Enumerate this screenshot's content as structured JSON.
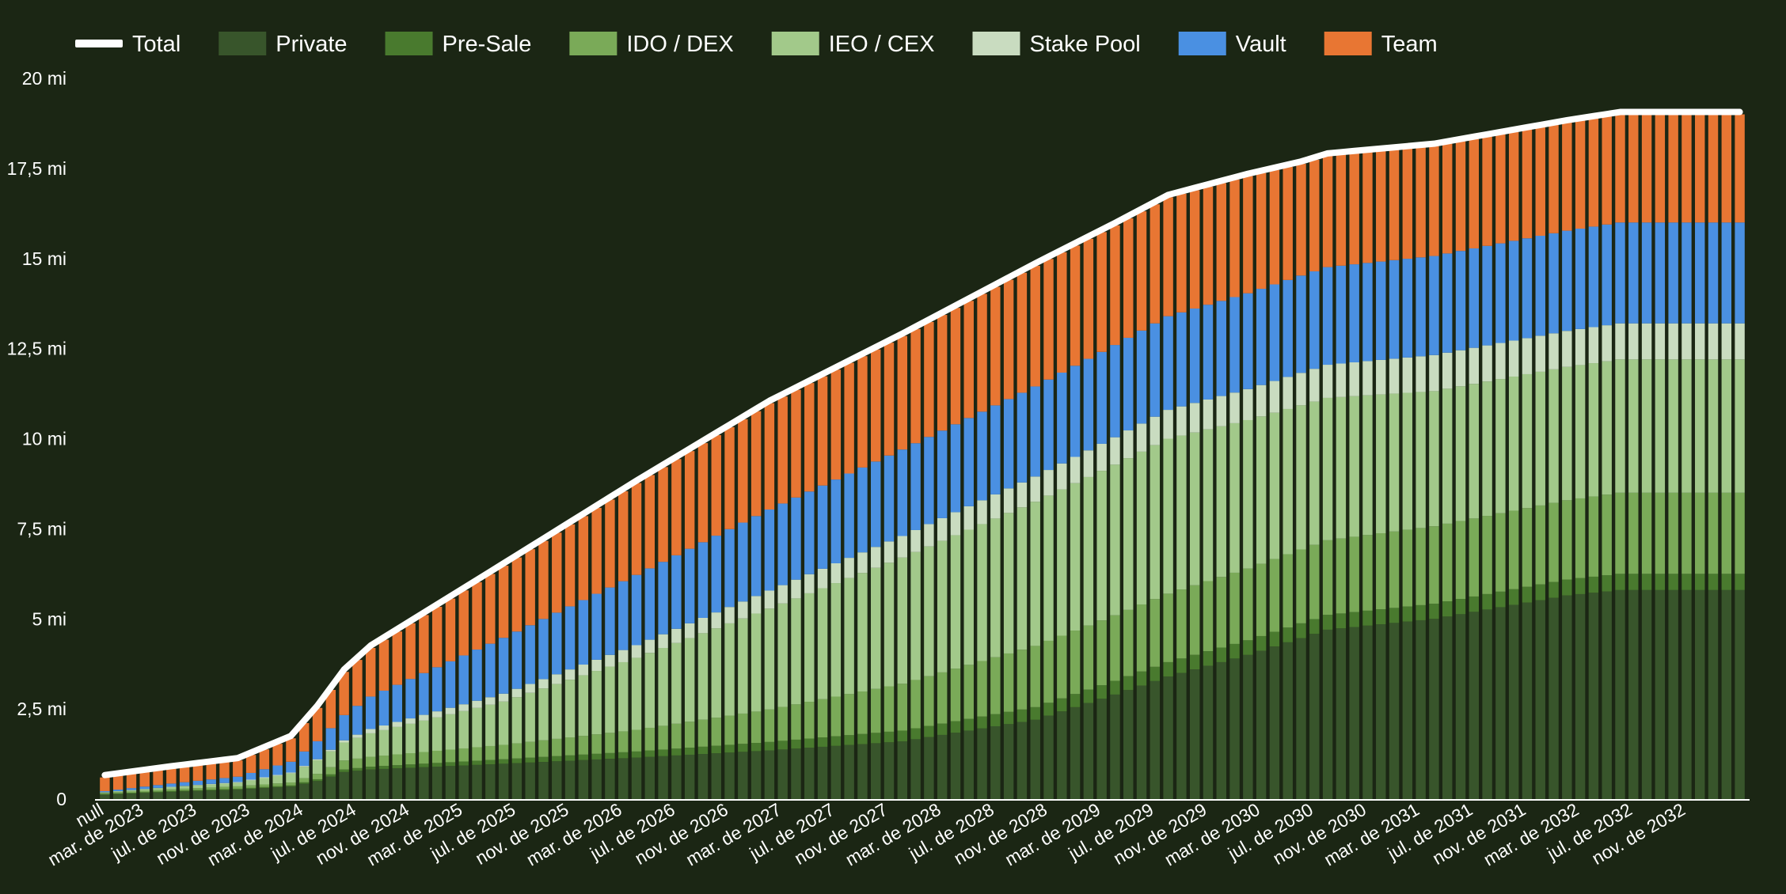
{
  "chart_data": {
    "type": "bar",
    "stacked": true,
    "title": "",
    "xlabel": "",
    "ylabel": "",
    "ylim": [
      0,
      20000000
    ],
    "grid": false,
    "legend_position": "top",
    "background": "#1b2614",
    "y_ticks": [
      {
        "value": 0,
        "label": "0"
      },
      {
        "value": 2500000,
        "label": "2,5 mi"
      },
      {
        "value": 5000000,
        "label": "5 mi"
      },
      {
        "value": 7500000,
        "label": "7,5 mi"
      },
      {
        "value": 10000000,
        "label": "10 mi"
      },
      {
        "value": 12500000,
        "label": "12,5 mi"
      },
      {
        "value": 15000000,
        "label": "15 mi"
      },
      {
        "value": 17500000,
        "label": "17,5 mi"
      },
      {
        "value": 20000000,
        "label": "20 mi"
      }
    ],
    "x_tick_labels": [
      {
        "index": 0,
        "label": "null"
      },
      {
        "index": 3,
        "label": "mar. de 2023"
      },
      {
        "index": 7,
        "label": "jul. de 2023"
      },
      {
        "index": 11,
        "label": "nov. de 2023"
      },
      {
        "index": 15,
        "label": "mar. de 2024"
      },
      {
        "index": 19,
        "label": "jul. de 2024"
      },
      {
        "index": 23,
        "label": "nov. de 2024"
      },
      {
        "index": 27,
        "label": "mar. de 2025"
      },
      {
        "index": 31,
        "label": "jul. de 2025"
      },
      {
        "index": 35,
        "label": "nov. de 2025"
      },
      {
        "index": 39,
        "label": "mar. de 2026"
      },
      {
        "index": 43,
        "label": "jul. de 2026"
      },
      {
        "index": 47,
        "label": "nov. de 2026"
      },
      {
        "index": 51,
        "label": "mar. de 2027"
      },
      {
        "index": 55,
        "label": "jul. de 2027"
      },
      {
        "index": 59,
        "label": "nov. de 2027"
      },
      {
        "index": 63,
        "label": "mar. de 2028"
      },
      {
        "index": 67,
        "label": "jul. de 2028"
      },
      {
        "index": 71,
        "label": "nov. de 2028"
      },
      {
        "index": 75,
        "label": "mar. de 2029"
      },
      {
        "index": 79,
        "label": "jul. de 2029"
      },
      {
        "index": 83,
        "label": "nov. de 2029"
      },
      {
        "index": 87,
        "label": "mar. de 2030"
      },
      {
        "index": 91,
        "label": "jul. de 2030"
      },
      {
        "index": 95,
        "label": "nov. de 2030"
      },
      {
        "index": 99,
        "label": "mar. de 2031"
      },
      {
        "index": 103,
        "label": "jul. de 2031"
      },
      {
        "index": 107,
        "label": "nov. de 2031"
      },
      {
        "index": 111,
        "label": "mar. de 2032"
      },
      {
        "index": 115,
        "label": "jul. de 2032"
      },
      {
        "index": 119,
        "label": "nov. de 2032"
      }
    ],
    "total_series": {
      "name": "Total",
      "color": "#ffffff"
    },
    "series": [
      {
        "name": "Private",
        "color": "#38552b",
        "points": [
          [
            0,
            0.12
          ],
          [
            5,
            0.2
          ],
          [
            10,
            0.26
          ],
          [
            14,
            0.35
          ],
          [
            16,
            0.5
          ],
          [
            18,
            0.75
          ],
          [
            20,
            0.82
          ],
          [
            30,
            0.98
          ],
          [
            40,
            1.15
          ],
          [
            50,
            1.35
          ],
          [
            60,
            1.6
          ],
          [
            70,
            2.2
          ],
          [
            76,
            2.9
          ],
          [
            80,
            3.4
          ],
          [
            86,
            4.0
          ],
          [
            92,
            4.7
          ],
          [
            100,
            5.0
          ],
          [
            110,
            5.65
          ],
          [
            114,
            5.8
          ],
          [
            123,
            5.8
          ]
        ]
      },
      {
        "name": "Pre-Sale",
        "color": "#497a2e",
        "points": [
          [
            0,
            0.02
          ],
          [
            14,
            0.03
          ],
          [
            16,
            0.05
          ],
          [
            18,
            0.07
          ],
          [
            40,
            0.17
          ],
          [
            60,
            0.3
          ],
          [
            80,
            0.4
          ],
          [
            100,
            0.42
          ],
          [
            114,
            0.45
          ],
          [
            123,
            0.45
          ]
        ]
      },
      {
        "name": "IDO / DEX",
        "color": "#7aaa58",
        "points": [
          [
            0,
            0.03
          ],
          [
            14,
            0.08
          ],
          [
            16,
            0.15
          ],
          [
            18,
            0.25
          ],
          [
            30,
            0.4
          ],
          [
            40,
            0.6
          ],
          [
            50,
            0.9
          ],
          [
            60,
            1.3
          ],
          [
            70,
            1.7
          ],
          [
            80,
            1.9
          ],
          [
            90,
            2.05
          ],
          [
            100,
            2.15
          ],
          [
            110,
            2.2
          ],
          [
            114,
            2.25
          ],
          [
            123,
            2.25
          ]
        ]
      },
      {
        "name": "IEO / CEX",
        "color": "#a2c98a",
        "points": [
          [
            0,
            0.02
          ],
          [
            10,
            0.1
          ],
          [
            14,
            0.25
          ],
          [
            18,
            0.5
          ],
          [
            20,
            0.65
          ],
          [
            30,
            1.2
          ],
          [
            40,
            2.0
          ],
          [
            50,
            2.8
          ],
          [
            60,
            3.5
          ],
          [
            70,
            4.0
          ],
          [
            80,
            4.3
          ],
          [
            90,
            4.0
          ],
          [
            100,
            3.75
          ],
          [
            110,
            3.7
          ],
          [
            114,
            3.7
          ],
          [
            123,
            3.7
          ]
        ]
      },
      {
        "name": "Stake Pool",
        "color": "#c9dcc0",
        "points": [
          [
            0,
            0.0
          ],
          [
            16,
            0.03
          ],
          [
            18,
            0.06
          ],
          [
            20,
            0.12
          ],
          [
            30,
            0.22
          ],
          [
            40,
            0.35
          ],
          [
            50,
            0.5
          ],
          [
            60,
            0.6
          ],
          [
            70,
            0.7
          ],
          [
            80,
            0.8
          ],
          [
            90,
            0.9
          ],
          [
            100,
            1.0
          ],
          [
            110,
            1.0
          ],
          [
            114,
            1.0
          ],
          [
            123,
            1.0
          ]
        ]
      },
      {
        "name": "Vault",
        "color": "#4a90e2",
        "points": [
          [
            0,
            0.03
          ],
          [
            10,
            0.15
          ],
          [
            14,
            0.3
          ],
          [
            20,
            0.9
          ],
          [
            30,
            1.55
          ],
          [
            40,
            1.95
          ],
          [
            50,
            2.25
          ],
          [
            60,
            2.4
          ],
          [
            70,
            2.5
          ],
          [
            80,
            2.6
          ],
          [
            90,
            2.7
          ],
          [
            100,
            2.75
          ],
          [
            110,
            2.78
          ],
          [
            114,
            2.8
          ],
          [
            123,
            2.8
          ]
        ]
      },
      {
        "name": "Team",
        "color": "#e87633",
        "points": [
          [
            0,
            0.38
          ],
          [
            10,
            0.45
          ],
          [
            14,
            0.65
          ],
          [
            18,
            1.2
          ],
          [
            20,
            1.35
          ],
          [
            30,
            2.0
          ],
          [
            40,
            2.55
          ],
          [
            50,
            2.95
          ],
          [
            60,
            3.15
          ],
          [
            70,
            3.35
          ],
          [
            80,
            3.3
          ],
          [
            86,
            3.25
          ],
          [
            90,
            3.1
          ],
          [
            100,
            3.05
          ],
          [
            110,
            3.0
          ],
          [
            114,
            3.0
          ],
          [
            123,
            3.0
          ]
        ]
      }
    ],
    "bar_count": 124,
    "value_unit_scale": 1000000
  }
}
